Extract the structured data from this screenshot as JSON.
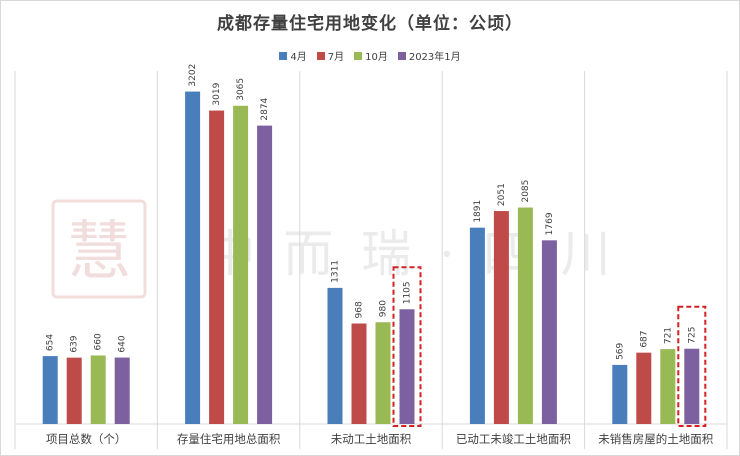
{
  "chart_data": {
    "type": "bar",
    "title": "成都存量住宅用地变化（单位：公顷）",
    "categories": [
      "项目总数（个）",
      "存量住宅用地总面积",
      "未动工土地面积",
      "已动工未竣工土地面积",
      "未销售房屋的土地面积"
    ],
    "series": [
      {
        "name": "4月",
        "color": "#4a7ebb",
        "values": [
          654,
          3202,
          1311,
          1891,
          569
        ]
      },
      {
        "name": "7月",
        "color": "#be4b48",
        "values": [
          639,
          3019,
          968,
          2051,
          687
        ]
      },
      {
        "name": "10月",
        "color": "#98b954",
        "values": [
          660,
          3065,
          980,
          2085,
          721
        ]
      },
      {
        "name": "2023年1月",
        "color": "#7d60a0",
        "values": [
          640,
          2874,
          1105,
          1769,
          725
        ]
      }
    ],
    "ylim": [
      0,
      3400
    ],
    "grid": false,
    "legend_position": "top",
    "highlighted_bars": [
      {
        "category": "未动工土地面积",
        "series": "2023年1月"
      },
      {
        "category": "未销售房屋的土地面积",
        "series": "2023年1月"
      }
    ]
  },
  "watermark": {
    "seal": "慧",
    "text": "中 而 瑞 · 四 川"
  }
}
